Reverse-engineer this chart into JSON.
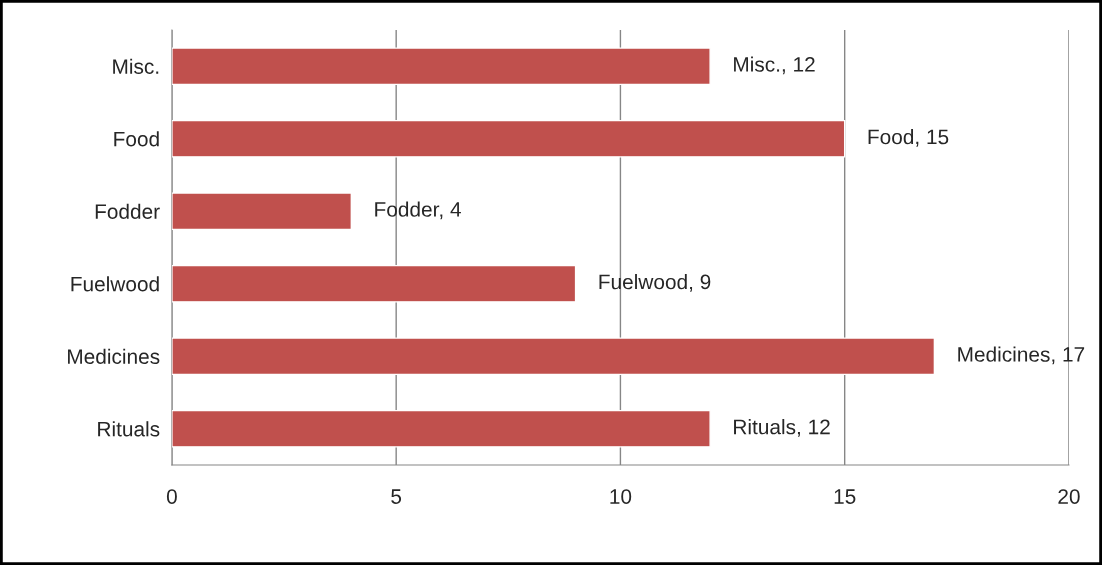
{
  "chart_data": {
    "type": "bar",
    "orientation": "horizontal",
    "categories": [
      "Misc.",
      "Food",
      "Fodder",
      "Fuelwood",
      "Medicines",
      "Rituals"
    ],
    "values": [
      12,
      15,
      4,
      9,
      17,
      12
    ],
    "value_labels": [
      "Misc., 12",
      "Food, 15",
      "Fodder, 4",
      "Fuelwood, 9",
      "Medicines, 17",
      "Rituals, 12"
    ],
    "color": "#c0504d",
    "xlim": [
      0,
      20
    ],
    "xticks": [
      0,
      5,
      10,
      15,
      20
    ],
    "grid": "x",
    "legend": false
  }
}
